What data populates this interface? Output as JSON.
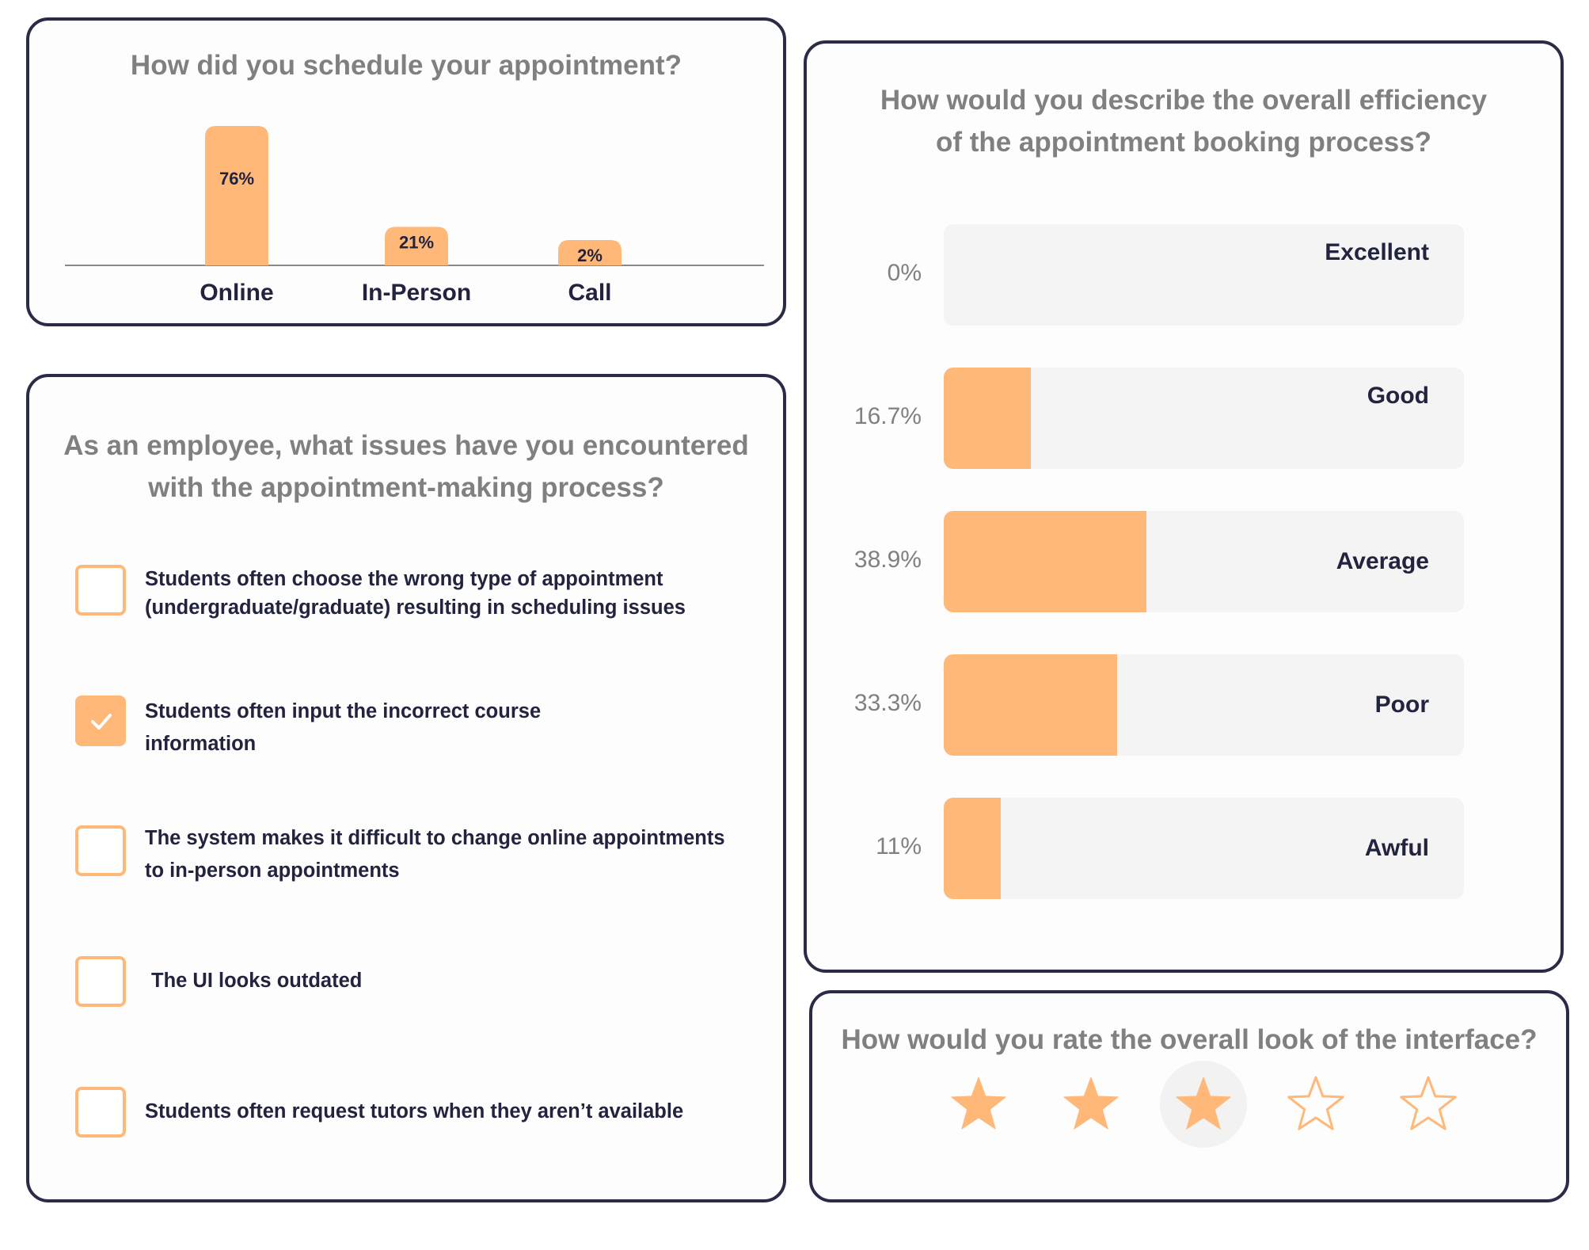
{
  "schedule_card": {
    "question": "How did you schedule your appointment?",
    "chart_data": {
      "type": "bar",
      "title": "How did you schedule your appointment?",
      "categories": [
        "Online",
        "In-Person",
        "Call"
      ],
      "values": [
        76,
        21,
        2
      ],
      "labels": [
        "76%",
        "21%",
        "2%"
      ],
      "ylim": [
        0,
        76
      ],
      "xlabel": "",
      "ylabel": ""
    }
  },
  "issues_card": {
    "question_line1": "As an employee, what issues have you encountered",
    "question_line2": "with the appointment-making process?",
    "options": [
      {
        "line1": "Students often choose the wrong type of appointment",
        "line2": "(undergraduate/graduate) resulting in scheduling issues",
        "checked": false
      },
      {
        "line1": "Students often input the incorrect course",
        "line2": "information",
        "checked": true
      },
      {
        "line1": "The system makes it difficult to change online appointments",
        "line2": "to in-person appointments",
        "checked": false
      },
      {
        "line1": "The UI looks outdated",
        "line2": "",
        "checked": false
      },
      {
        "line1": "Students often request tutors when they aren’t available",
        "line2": "",
        "checked": false
      }
    ]
  },
  "efficiency_card": {
    "question_line1": "How would you describe the overall efficiency",
    "question_line2": "of the appointment booking process?",
    "bars": [
      {
        "label": "Excellent",
        "pct_text": "0%",
        "value": 0
      },
      {
        "label": "Good",
        "pct_text": "16.7%",
        "value": 16.7
      },
      {
        "label": "Average",
        "pct_text": "38.9%",
        "value": 38.9
      },
      {
        "label": "Poor",
        "pct_text": "33.3%",
        "value": 33.3
      },
      {
        "label": "Awful",
        "pct_text": "11%",
        "value": 11
      }
    ]
  },
  "rating_card": {
    "question": "How would you rate the overall look of the interface?",
    "rating": 3,
    "max": 5
  },
  "colors": {
    "accent": "#ffb878",
    "border": "#2a2b47",
    "text_dark": "#22233f",
    "text_muted": "#808080",
    "track": "#f4f4f4"
  }
}
